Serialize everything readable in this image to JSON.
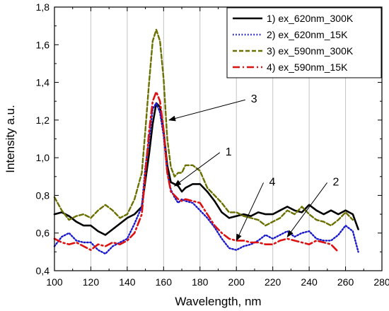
{
  "chart_data": {
    "type": "line",
    "xlabel": "Wavelength, nm",
    "ylabel": "Intensity a.u.",
    "xlim": [
      100,
      280
    ],
    "ylim": [
      0.4,
      1.8
    ],
    "xticks": [
      "100",
      "120",
      "140",
      "160",
      "180",
      "200",
      "220",
      "240",
      "260",
      "280"
    ],
    "yticks": [
      "0,4",
      "0,6",
      "0,8",
      "1,0",
      "1,2",
      "1,4",
      "1,6",
      "1,8"
    ],
    "grid": "vertical",
    "legend_position": "top-right",
    "series": [
      {
        "name": "1) ex_620nm_300K",
        "color": "#000000",
        "dash": "solid",
        "x": [
          100,
          104,
          108,
          112,
          116,
          120,
          124,
          128,
          132,
          136,
          140,
          144,
          148,
          150,
          152,
          154,
          156,
          158,
          160,
          162,
          164,
          166,
          168,
          170,
          172,
          176,
          180,
          184,
          188,
          192,
          196,
          200,
          204,
          208,
          212,
          216,
          220,
          224,
          228,
          232,
          236,
          240,
          244,
          248,
          252,
          256,
          260,
          264,
          267
        ],
        "y": [
          0.7,
          0.71,
          0.69,
          0.66,
          0.64,
          0.64,
          0.61,
          0.59,
          0.62,
          0.65,
          0.68,
          0.7,
          0.74,
          0.88,
          1.02,
          1.18,
          1.29,
          1.27,
          1.14,
          0.96,
          0.87,
          0.86,
          0.85,
          0.82,
          0.84,
          0.86,
          0.86,
          0.82,
          0.77,
          0.71,
          0.68,
          0.69,
          0.7,
          0.69,
          0.71,
          0.7,
          0.7,
          0.72,
          0.74,
          0.72,
          0.71,
          0.75,
          0.72,
          0.7,
          0.72,
          0.7,
          0.72,
          0.7,
          0.62
        ]
      },
      {
        "name": "2) ex_620nm_15K",
        "color": "#1a1acc",
        "dash": "dotted",
        "x": [
          100,
          104,
          108,
          112,
          116,
          120,
          124,
          128,
          132,
          136,
          140,
          144,
          148,
          150,
          152,
          154,
          156,
          158,
          160,
          162,
          164,
          166,
          168,
          170,
          172,
          176,
          180,
          184,
          188,
          192,
          196,
          200,
          204,
          208,
          212,
          216,
          220,
          224,
          228,
          232,
          236,
          240,
          244,
          248,
          252,
          256,
          260,
          264,
          267
        ],
        "y": [
          0.53,
          0.58,
          0.6,
          0.56,
          0.55,
          0.55,
          0.51,
          0.49,
          0.53,
          0.55,
          0.57,
          0.65,
          0.74,
          0.95,
          1.1,
          1.26,
          1.29,
          1.24,
          1.12,
          0.92,
          0.83,
          0.79,
          0.76,
          0.78,
          0.77,
          0.76,
          0.72,
          0.68,
          0.63,
          0.57,
          0.52,
          0.51,
          0.53,
          0.54,
          0.56,
          0.59,
          0.57,
          0.59,
          0.61,
          0.58,
          0.6,
          0.61,
          0.57,
          0.56,
          0.56,
          0.59,
          0.64,
          0.61,
          0.5
        ]
      },
      {
        "name": "3) ex_590nm_300K",
        "color": "#6b7000",
        "dash": "dashed",
        "x": [
          100,
          104,
          108,
          112,
          116,
          120,
          124,
          128,
          132,
          136,
          140,
          144,
          148,
          150,
          152,
          154,
          156,
          158,
          160,
          162,
          164,
          166,
          168,
          170,
          172,
          176,
          180,
          184,
          188,
          192,
          196,
          200,
          204,
          208,
          212,
          216,
          220,
          224,
          228,
          232,
          236,
          240,
          244,
          248,
          252,
          256,
          260,
          264
        ],
        "y": [
          0.79,
          0.72,
          0.67,
          0.69,
          0.7,
          0.68,
          0.72,
          0.75,
          0.72,
          0.68,
          0.7,
          0.78,
          0.92,
          1.15,
          1.4,
          1.62,
          1.68,
          1.62,
          1.42,
          1.1,
          0.95,
          0.9,
          0.92,
          0.92,
          0.96,
          0.96,
          0.93,
          0.84,
          0.8,
          0.76,
          0.71,
          0.71,
          0.69,
          0.68,
          0.67,
          0.64,
          0.66,
          0.68,
          0.72,
          0.7,
          0.74,
          0.7,
          0.67,
          0.66,
          0.64,
          0.67,
          0.71,
          0.67
        ]
      },
      {
        "name": "4) ex_590nm_15K",
        "color": "#dd1111",
        "dash": "dashdot",
        "x": [
          100,
          104,
          108,
          112,
          116,
          120,
          124,
          128,
          132,
          136,
          140,
          144,
          148,
          150,
          152,
          154,
          156,
          158,
          160,
          162,
          164,
          166,
          168,
          170,
          172,
          176,
          180,
          184,
          188,
          192,
          196,
          200,
          204,
          208,
          212,
          216,
          220,
          224,
          228,
          232,
          236,
          240,
          244,
          248,
          252,
          256
        ],
        "y": [
          0.57,
          0.55,
          0.54,
          0.55,
          0.53,
          0.51,
          0.54,
          0.53,
          0.55,
          0.54,
          0.56,
          0.6,
          0.7,
          0.92,
          1.14,
          1.3,
          1.35,
          1.3,
          1.15,
          0.92,
          0.82,
          0.8,
          0.78,
          0.77,
          0.78,
          0.77,
          0.76,
          0.7,
          0.64,
          0.6,
          0.57,
          0.56,
          0.56,
          0.55,
          0.55,
          0.54,
          0.54,
          0.56,
          0.57,
          0.56,
          0.55,
          0.54,
          0.56,
          0.55,
          0.54,
          0.5
        ]
      }
    ],
    "annotations": [
      {
        "text": "3",
        "tx": 208,
        "ty": 1.3,
        "ax": 163,
        "ay": 1.2
      },
      {
        "text": "1",
        "tx": 194,
        "ty": 1.02,
        "ax": 166,
        "ay": 0.85
      },
      {
        "text": "4",
        "tx": 218,
        "ty": 0.86,
        "ax": 200,
        "ay": 0.56
      },
      {
        "text": "2",
        "tx": 253,
        "ty": 0.86,
        "ax": 228,
        "ay": 0.58
      }
    ]
  }
}
